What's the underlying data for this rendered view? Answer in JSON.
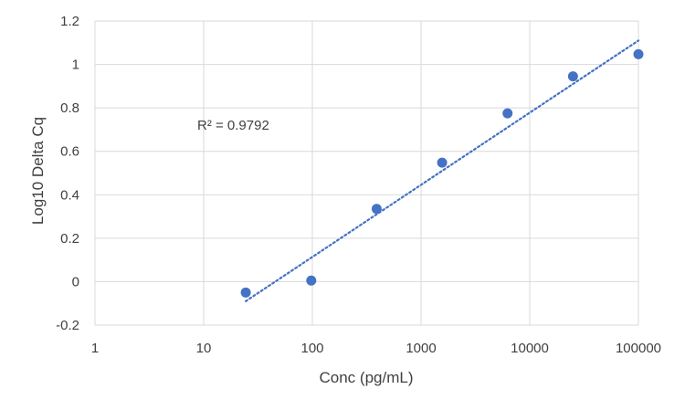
{
  "chart_data": {
    "type": "scatter",
    "xlabel": "Conc (pg/mL)",
    "ylabel": "Log10 Delta Cq",
    "x_scale": "log",
    "xlim": [
      1,
      100000
    ],
    "ylim": [
      -0.2,
      1.2
    ],
    "x_tick_labels": [
      "1",
      "10",
      "100",
      "1000",
      "10000",
      "100000"
    ],
    "y_tick_labels": [
      "-0.2",
      "0",
      "0.2",
      "0.4",
      "0.6",
      "0.8",
      "1",
      "1.2"
    ],
    "grid": true,
    "marker_color": "#4472c4",
    "series": [
      {
        "x": [
          24.4,
          97.7,
          390.6,
          1562.5,
          6250,
          25000,
          100000
        ],
        "y": [
          -0.05,
          0.005,
          0.335,
          0.548,
          0.775,
          0.945,
          1.047
        ]
      }
    ],
    "trendline": {
      "type": "logarithmic",
      "style": "dotted",
      "color": "#4472c4",
      "x_range": [
        24.4,
        100000
      ],
      "y_range": [
        -0.09,
        1.11
      ]
    },
    "annotation": "R² = 0.9792"
  }
}
